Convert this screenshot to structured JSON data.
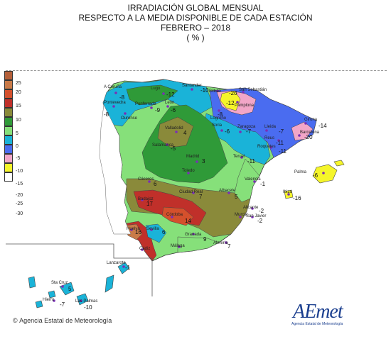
{
  "title": {
    "line1": "IRRADIACIÓN GLOBAL MENSUAL",
    "line2": "RESPECTO A LA MEDIA DISPONIBLE DE CADA ESTACIÓN",
    "line3": "FEBRERO – 2018",
    "line4": "( % )"
  },
  "legend": {
    "items": [
      {
        "label": "25",
        "color": "#b5603a"
      },
      {
        "label": "20",
        "color": "#c97a48"
      },
      {
        "label": "15",
        "color": "#d4502c"
      },
      {
        "label": "10",
        "color": "#c0302a"
      },
      {
        "label": "5",
        "color": "#8a8a3a"
      },
      {
        "label": "0",
        "color": "#2f9a38"
      },
      {
        "label": "-5",
        "color": "#86e07a"
      },
      {
        "label": "-10",
        "color": "#1ab3d8"
      },
      {
        "label": "-15",
        "color": "#4a6cf0"
      },
      {
        "label": "-20",
        "color": "#f2a6c8"
      },
      {
        "label": "-25",
        "color": "#f5f52a"
      },
      {
        "label": "-30",
        "color": "#ffffff"
      }
    ]
  },
  "stations": [
    {
      "name": "A Coruña",
      "value": "-8"
    },
    {
      "name": "Lugo",
      "value": "-12"
    },
    {
      "name": "Santander",
      "value": "-10"
    },
    {
      "name": "Bilbao",
      "value": "-20"
    },
    {
      "name": "San Sebastián",
      "value": ""
    },
    {
      "name": "Pamplona",
      "value": "-12"
    },
    {
      "name": "Pontevedra",
      "value": "-8"
    },
    {
      "name": "Ourense",
      "value": ""
    },
    {
      "name": "Ponferrada",
      "value": "-9"
    },
    {
      "name": "León",
      "value": "-6"
    },
    {
      "name": "Logroño",
      "value": "-8"
    },
    {
      "name": "Soria",
      "value": "-6"
    },
    {
      "name": "Lleida",
      "value": "-7"
    },
    {
      "name": "Girona",
      "value": "-14"
    },
    {
      "name": "Barcelona",
      "value": "-20"
    },
    {
      "name": "Zaragoza",
      "value": "-7"
    },
    {
      "name": "Valladolid",
      "value": "4"
    },
    {
      "name": "Salamanca",
      "value": "-5"
    },
    {
      "name": "Madrid",
      "value": "3"
    },
    {
      "name": "Teruel",
      "value": "-11"
    },
    {
      "name": "Reus",
      "value": "-11"
    },
    {
      "name": "Roquetes",
      "value": "-11"
    },
    {
      "name": "Palma",
      "value": "-6"
    },
    {
      "name": "Toledo",
      "value": ""
    },
    {
      "name": "Cáceres",
      "value": "6"
    },
    {
      "name": "Valencia",
      "value": "-1"
    },
    {
      "name": "Ibiza",
      "value": "-16"
    },
    {
      "name": "Ciudad Real",
      "value": "7"
    },
    {
      "name": "Albacete",
      "value": "5"
    },
    {
      "name": "Badajoz",
      "value": "17"
    },
    {
      "name": "Alicante",
      "value": "-2"
    },
    {
      "name": "Murcia",
      "value": ""
    },
    {
      "name": "San Javier",
      "value": "-2"
    },
    {
      "name": "Córdoba",
      "value": "14"
    },
    {
      "name": "Huelva",
      "value": "16"
    },
    {
      "name": "Sevilla",
      "value": "6"
    },
    {
      "name": "Granada",
      "value": "9"
    },
    {
      "name": "Almería",
      "value": "7"
    },
    {
      "name": "Málaga",
      "value": ""
    },
    {
      "name": "Cádiz",
      "value": ""
    },
    {
      "name": "Lanzarote",
      "value": "-1"
    },
    {
      "name": "Sta Cruz",
      "value": "5"
    },
    {
      "name": "Las Palmas",
      "value": "-10"
    },
    {
      "name": "Hierro",
      "value": "-7"
    }
  ],
  "credit": {
    "copyright_symbol": "©",
    "agency": "Agencia Estatal de Meteorología"
  },
  "logo": {
    "word": "AEmet",
    "subtitle": "Agencia Estatal de Meteorología"
  }
}
